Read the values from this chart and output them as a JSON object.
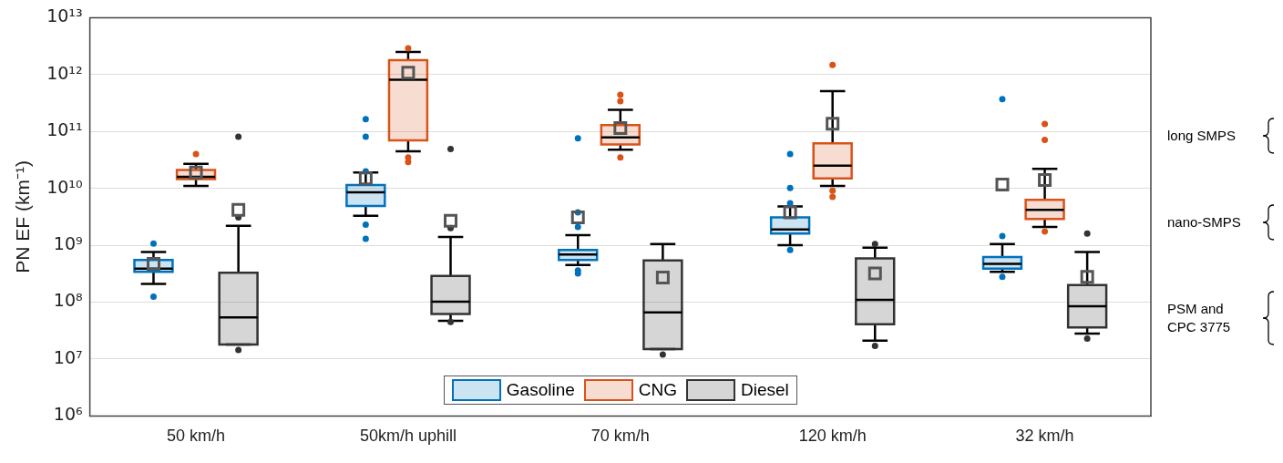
{
  "chart_data": {
    "type": "box",
    "ylabel": "PN EF (km⁻¹)",
    "log": "y",
    "grid": "y",
    "legend": "bottom",
    "categories": [
      "50 km/h",
      "50km/h uphill",
      "70 km/h",
      "120 km/h",
      "32 km/h"
    ],
    "ylim": [
      1000000.0,
      10000000000000.0
    ],
    "yticks": [
      {
        "value": 1000000.0,
        "label": "10⁶"
      },
      {
        "value": 10000000.0,
        "label": "10⁷"
      },
      {
        "value": 100000000.0,
        "label": "10⁸"
      },
      {
        "value": 1000000000.0,
        "label": "10⁹"
      },
      {
        "value": 10000000000.0,
        "label": "10¹⁰"
      },
      {
        "value": 100000000000.0,
        "label": "10¹¹"
      },
      {
        "value": 1000000000000.0,
        "label": "10¹²"
      },
      {
        "value": 10000000000000.0,
        "label": "10¹³"
      }
    ],
    "series": [
      {
        "name": "Gasoline",
        "color": "#0072bd",
        "boxes": [
          {
            "low": 210000000.0,
            "q1": 340000000.0,
            "median": 390000000.0,
            "q3": 550000000.0,
            "high": 760000000.0,
            "mean": 470000000.0,
            "outliers": [
              1070000000.0,
              125000000.0
            ]
          },
          {
            "low": 3300000000.0,
            "q1": 4900000000.0,
            "median": 8500000000.0,
            "q3": 11500000000.0,
            "high": 19000000000.0,
            "mean": 15000000000.0,
            "outliers": [
              165000000000.0,
              81000000000.0,
              20000000000.0,
              2300000000.0,
              1300000000.0
            ]
          },
          {
            "low": 450000000.0,
            "q1": 550000000.0,
            "median": 690000000.0,
            "q3": 830000000.0,
            "high": 1500000000.0,
            "mean": 3100000000.0,
            "outliers": [
              76000000000.0,
              3800000000.0,
              2100000000.0,
              360000000.0,
              320000000.0
            ]
          },
          {
            "low": 1000000000.0,
            "q1": 1600000000.0,
            "median": 1900000000.0,
            "q3": 3100000000.0,
            "high": 4800000000.0,
            "mean": 3800000000.0,
            "outliers": [
              40000000000.0,
              10200000000.0,
              5500000000.0,
              830000000.0
            ]
          },
          {
            "low": 340000000.0,
            "q1": 390000000.0,
            "median": 470000000.0,
            "q3": 620000000.0,
            "high": 1050000000.0,
            "mean": 11700000000.0,
            "outliers": [
              370000000000.0,
              1450000000.0,
              280000000.0
            ]
          }
        ]
      },
      {
        "name": "CNG",
        "color": "#d95319",
        "boxes": [
          {
            "low": 11000000000.0,
            "q1": 14500000000.0,
            "median": 16000000000.0,
            "q3": 21000000000.0,
            "high": 27000000000.0,
            "mean": 19000000000.0,
            "outliers": [
              40000000000.0
            ]
          },
          {
            "low": 45000000000.0,
            "q1": 70000000000.0,
            "median": 810000000000.0,
            "q3": 1800000000000.0,
            "high": 2500000000000.0,
            "mean": 1080000000000.0,
            "outliers": [
              2900000000000.0,
              35000000000.0,
              29000000000.0
            ]
          },
          {
            "low": 48000000000.0,
            "q1": 59000000000.0,
            "median": 79000000000.0,
            "q3": 130000000000.0,
            "high": 240000000000.0,
            "mean": 115000000000.0,
            "outliers": [
              440000000000.0,
              340000000000.0,
              35000000000.0
            ]
          },
          {
            "low": 11000000000.0,
            "q1": 15000000000.0,
            "median": 25000000000.0,
            "q3": 62000000000.0,
            "high": 510000000000.0,
            "mean": 137000000000.0,
            "outliers": [
              1480000000000.0,
              9100000000.0,
              7100000000.0
            ]
          },
          {
            "low": 2100000000.0,
            "q1": 2900000000.0,
            "median": 4200000000.0,
            "q3": 6300000000.0,
            "high": 22000000000.0,
            "mean": 14000000000.0,
            "outliers": [
              135000000000.0,
              71000000000.0,
              1750000000.0
            ]
          }
        ]
      },
      {
        "name": "Diesel",
        "color": "#333333",
        "boxes": [
          {
            "low": 18000000.0,
            "q1": 18000000.0,
            "median": 54000000.0,
            "q3": 330000000.0,
            "high": 2200000000.0,
            "mean": 4200000000.0,
            "outliers": [
              81000000000.0,
              3100000000.0,
              14500000.0
            ]
          },
          {
            "low": 47000000.0,
            "q1": 62000000.0,
            "median": 102000000.0,
            "q3": 290000000.0,
            "high": 1400000000.0,
            "mean": 2700000000.0,
            "outliers": [
              49000000000.0,
              2000000000.0,
              45000000.0
            ]
          },
          {
            "low": 15000000.0,
            "q1": 15000000.0,
            "median": 66000000.0,
            "q3": 540000000.0,
            "high": 1050000000.0,
            "mean": 270000000.0,
            "outliers": [
              12000000.0
            ]
          },
          {
            "low": 21000000.0,
            "q1": 41000000.0,
            "median": 110000000.0,
            "q3": 590000000.0,
            "high": 910000000.0,
            "mean": 320000000.0,
            "outliers": [
              1050000000.0,
              17000000.0
            ]
          },
          {
            "low": 28000000.0,
            "q1": 36000000.0,
            "median": 85000000.0,
            "q3": 200000000.0,
            "high": 760000000.0,
            "mean": 280000000.0,
            "outliers": [
              1600000000.0,
              23000000.0
            ]
          }
        ]
      }
    ],
    "annotations": [
      "long SMPS",
      "nano-SMPS",
      "PSM and CPC 3775"
    ]
  }
}
